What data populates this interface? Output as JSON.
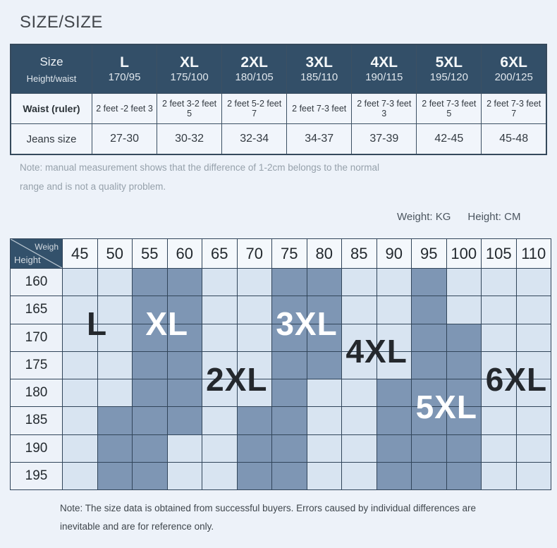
{
  "title": "SIZE/SIZE",
  "note_top": {
    "line1": "Note: manual measurement shows that the difference of 1-2cm belongs to the normal",
    "line2": "range and is not a quality problem."
  },
  "units": {
    "weight_label": "Weight: KG",
    "height_label": "Height: CM"
  },
  "note_bottom": {
    "line1": "Note: The size data is obtained from successful buyers. Errors caused by individual differences are",
    "line2": "inevitable and are for reference only."
  },
  "chart_data": [
    {
      "type": "table",
      "corner": {
        "top": "Size",
        "bottom": "Height/waist"
      },
      "row_labels": {
        "waist": "Waist (ruler)",
        "jeans": "Jeans size"
      },
      "columns": [
        {
          "size": "L",
          "height_waist": "170/95",
          "waist_ruler": "2 feet -2 feet 3",
          "jeans_size": "27-30"
        },
        {
          "size": "XL",
          "height_waist": "175/100",
          "waist_ruler": "2 feet 3-2 feet 5",
          "jeans_size": "30-32"
        },
        {
          "size": "2XL",
          "height_waist": "180/105",
          "waist_ruler": "2 feet 5-2 feet 7",
          "jeans_size": "32-34"
        },
        {
          "size": "3XL",
          "height_waist": "185/110",
          "waist_ruler": "2 feet 7-3 feet",
          "jeans_size": "34-37"
        },
        {
          "size": "4XL",
          "height_waist": "190/115",
          "waist_ruler": "2 feet 7-3 feet 3",
          "jeans_size": "37-39"
        },
        {
          "size": "5XL",
          "height_waist": "195/120",
          "waist_ruler": "2 feet 7-3 feet 5",
          "jeans_size": "42-45"
        },
        {
          "size": "6XL",
          "height_waist": "200/125",
          "waist_ruler": "2 feet 7-3 feet 7",
          "jeans_size": "45-48"
        }
      ]
    },
    {
      "type": "heatmap",
      "corner_labels": {
        "top_right": "Weigh",
        "bottom_left": "Height"
      },
      "weights": [
        45,
        50,
        55,
        60,
        65,
        70,
        75,
        80,
        85,
        90,
        95,
        100,
        105,
        110
      ],
      "heights": [
        160,
        165,
        170,
        175,
        180,
        185,
        190,
        195
      ],
      "dark_cells": {
        "160": [
          55,
          60,
          75,
          80,
          95
        ],
        "165": [
          55,
          60,
          75,
          80,
          95
        ],
        "170": [
          55,
          60,
          75,
          80,
          95,
          100
        ],
        "175": [
          55,
          60,
          75,
          80,
          95,
          100
        ],
        "180": [
          55,
          60,
          75,
          90,
          95,
          100
        ],
        "185": [
          50,
          55,
          60,
          70,
          75,
          90,
          95,
          100
        ],
        "190": [
          50,
          55,
          70,
          75,
          90,
          95,
          100
        ],
        "195": [
          50,
          55,
          70,
          75,
          90,
          95,
          100
        ]
      },
      "size_labels": [
        {
          "text": "L",
          "ink": "dark",
          "weights": [
            45,
            50
          ],
          "heights": [
            165,
            170
          ]
        },
        {
          "text": "XL",
          "ink": "light",
          "weights": [
            55,
            60
          ],
          "heights": [
            165,
            170
          ]
        },
        {
          "text": "2XL",
          "ink": "dark",
          "weights": [
            65,
            70
          ],
          "heights": [
            175,
            180
          ]
        },
        {
          "text": "3XL",
          "ink": "light",
          "weights": [
            75,
            80
          ],
          "heights": [
            165,
            170
          ]
        },
        {
          "text": "4XL",
          "ink": "dark",
          "weights": [
            85,
            90
          ],
          "heights": [
            170,
            175
          ]
        },
        {
          "text": "5XL",
          "ink": "light",
          "weights": [
            95,
            100
          ],
          "heights": [
            180,
            185
          ]
        },
        {
          "text": "6XL",
          "ink": "dark",
          "weights": [
            105,
            110
          ],
          "heights": [
            175,
            180
          ]
        }
      ],
      "colors": {
        "cell_dark": "#7e96b4",
        "cell_light": "#d8e4f1",
        "label_dark": "#24282d",
        "label_light": "#ffffff",
        "header_bg": "#334f68",
        "grid_line": "#31455a"
      }
    }
  ]
}
